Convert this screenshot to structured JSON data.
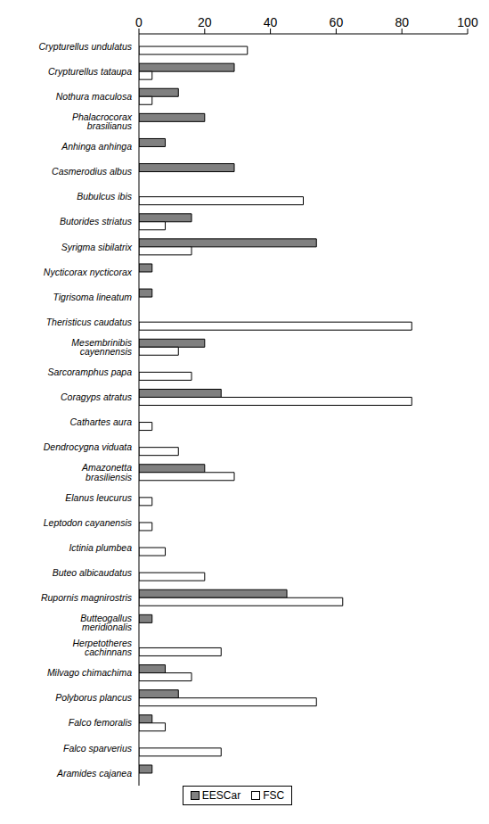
{
  "chart_data": {
    "type": "bar",
    "orientation": "horizontal",
    "categories": [
      "Crypturellus undulatus",
      "Crypturellus tataupa",
      "Nothura maculosa",
      "Phalacrocorax brasilianus",
      "Anhinga anhinga",
      "Casmerodius albus",
      "Bubulcus ibis",
      "Butorides striatus",
      "Syrigma sibilatrix",
      "Nycticorax nycticorax",
      "Tigrisoma lineatum",
      "Theristicus caudatus",
      "Mesembrinibis cayennensis",
      "Sarcoramphus papa",
      "Coragyps atratus",
      "Cathartes aura",
      "Dendrocygna viduata",
      "Amazonetta brasiliensis",
      "Elanus leucurus",
      "Leptodon cayanensis",
      "Ictinia plumbea",
      "Buteo albicaudatus",
      "Rupornis magnirostris",
      "Butteogallus meridionalis",
      "Herpetotheres cachinnans",
      "Milvago chimachima",
      "Polyborus plancus",
      "Falco femoralis",
      "Falco sparverius",
      "Aramides cajanea"
    ],
    "series": [
      {
        "name": "EESCar",
        "color": "#808080",
        "values": [
          0,
          29,
          12,
          20,
          8,
          29,
          0,
          16,
          54,
          4,
          4,
          0,
          20,
          0,
          25,
          0,
          0,
          20,
          0,
          0,
          0,
          0,
          45,
          4,
          0,
          8,
          12,
          4,
          0,
          4
        ]
      },
      {
        "name": "FSC",
        "color": "#ffffff",
        "values": [
          33,
          4,
          4,
          0,
          0,
          0,
          50,
          8,
          16,
          0,
          0,
          83,
          12,
          16,
          83,
          4,
          12,
          29,
          4,
          4,
          8,
          20,
          62,
          0,
          25,
          16,
          54,
          8,
          25,
          0
        ]
      }
    ],
    "xlim": [
      0,
      100
    ],
    "xticks": [
      0,
      20,
      40,
      60,
      80,
      100
    ],
    "grid": false,
    "legend": "bottom"
  }
}
